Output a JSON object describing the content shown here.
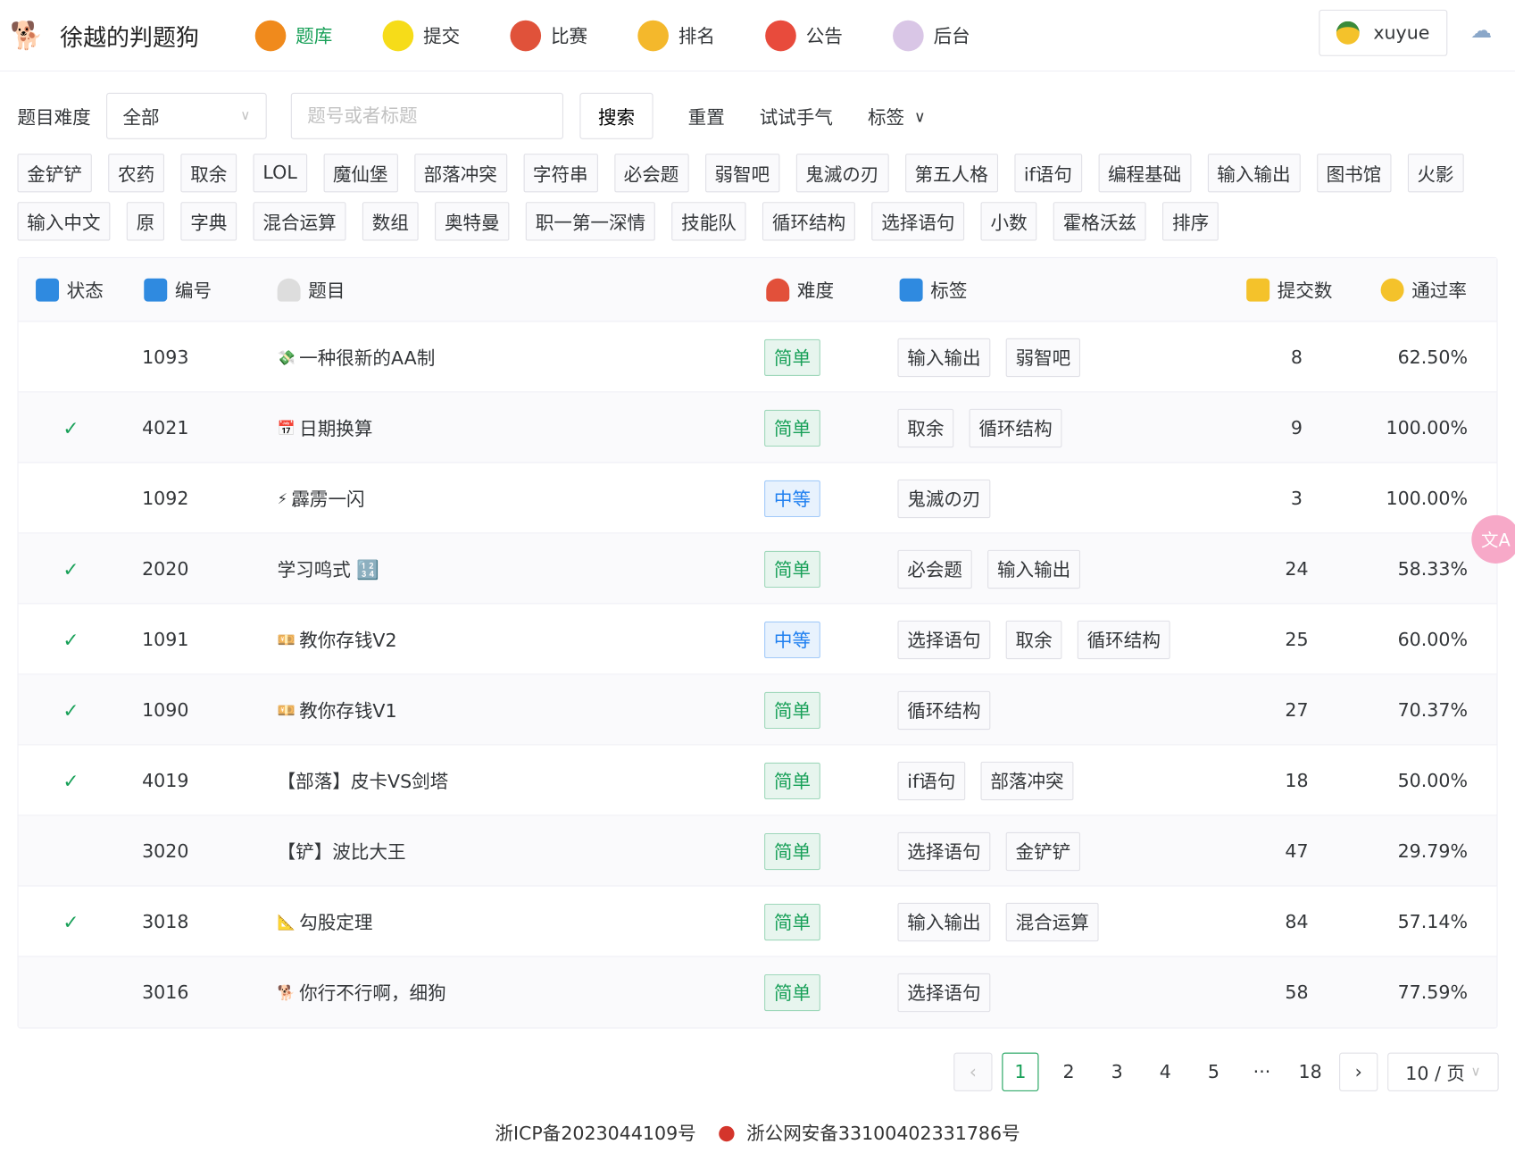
{
  "nav": {
    "site_title": "徐越的判题狗",
    "items": [
      {
        "label": "题库",
        "icon": "pumpkin-icon",
        "color": "#f08a1c",
        "active": true
      },
      {
        "label": "提交",
        "icon": "lemon-icon",
        "color": "#f6dc19"
      },
      {
        "label": "比赛",
        "icon": "target-icon",
        "color": "#e0523a"
      },
      {
        "label": "排名",
        "icon": "crown-icon",
        "color": "#f4b82c"
      },
      {
        "label": "公告",
        "icon": "siren-icon",
        "color": "#e84b3c"
      },
      {
        "label": "后台",
        "icon": "unicorn-icon",
        "color": "#d9c6e6"
      }
    ],
    "user": "xuyue"
  },
  "filter": {
    "difficulty_label": "题目难度",
    "difficulty_value": "全部",
    "search_placeholder": "题号或者标题",
    "search": "搜索",
    "reset": "重置",
    "random": "试试手气",
    "tags": "标签"
  },
  "tags": [
    "金铲铲",
    "农药",
    "取余",
    "LOL",
    "魔仙堡",
    "部落冲突",
    "字符串",
    "必会题",
    "弱智吧",
    "鬼滅の刃",
    "第五人格",
    "if语句",
    "编程基础",
    "输入输出",
    "图书馆",
    "火影",
    "输入中文",
    "原",
    "字典",
    "混合运算",
    "数组",
    "奥特曼",
    "职一第一深情",
    "技能队",
    "循环结构",
    "选择语句",
    "小数",
    "霍格沃兹",
    "排序"
  ],
  "table": {
    "headers": {
      "status": "状态",
      "id": "编号",
      "title": "题目",
      "difficulty": "难度",
      "tags": "标签",
      "submissions": "提交数",
      "rate": "通过率"
    },
    "rows": [
      {
        "solved": false,
        "id": "1093",
        "icon": "💸",
        "title": "一种很新的AA制",
        "difficulty": "简单",
        "tags": [
          "输入输出",
          "弱智吧"
        ],
        "submissions": "8",
        "rate": "62.50%"
      },
      {
        "solved": true,
        "id": "4021",
        "icon": "📅",
        "title": "日期换算",
        "difficulty": "简单",
        "tags": [
          "取余",
          "循环结构"
        ],
        "submissions": "9",
        "rate": "100.00%"
      },
      {
        "solved": false,
        "id": "1092",
        "icon": "⚡",
        "title": "霹雳一闪",
        "difficulty": "中等",
        "tags": [
          "鬼滅の刃"
        ],
        "submissions": "3",
        "rate": "100.00%"
      },
      {
        "solved": true,
        "id": "2020",
        "icon": "",
        "title": "学习鸣式 🔢",
        "difficulty": "简单",
        "tags": [
          "必会题",
          "输入输出"
        ],
        "submissions": "24",
        "rate": "58.33%"
      },
      {
        "solved": true,
        "id": "1091",
        "icon": "💴",
        "title": "教你存钱V2",
        "difficulty": "中等",
        "tags": [
          "选择语句",
          "取余",
          "循环结构"
        ],
        "submissions": "25",
        "rate": "60.00%"
      },
      {
        "solved": true,
        "id": "1090",
        "icon": "💴",
        "title": "教你存钱V1",
        "difficulty": "简单",
        "tags": [
          "循环结构"
        ],
        "submissions": "27",
        "rate": "70.37%"
      },
      {
        "solved": true,
        "id": "4019",
        "icon": "",
        "title": "【部落】皮卡VS剑塔",
        "difficulty": "简单",
        "tags": [
          "if语句",
          "部落冲突"
        ],
        "submissions": "18",
        "rate": "50.00%"
      },
      {
        "solved": false,
        "id": "3020",
        "icon": "",
        "title": "【铲】波比大王",
        "difficulty": "简单",
        "tags": [
          "选择语句",
          "金铲铲"
        ],
        "submissions": "47",
        "rate": "29.79%"
      },
      {
        "solved": true,
        "id": "3018",
        "icon": "📐",
        "title": "勾股定理",
        "difficulty": "简单",
        "tags": [
          "输入输出",
          "混合运算"
        ],
        "submissions": "84",
        "rate": "57.14%"
      },
      {
        "solved": false,
        "id": "3016",
        "icon": "🐕",
        "title": "你行不行啊，细狗",
        "difficulty": "简单",
        "tags": [
          "选择语句"
        ],
        "submissions": "58",
        "rate": "77.59%"
      }
    ]
  },
  "pagination": {
    "pages": [
      "1",
      "2",
      "3",
      "4",
      "5",
      "···",
      "18"
    ],
    "current": "1",
    "page_size": "10 / 页"
  },
  "footer": {
    "icp": "浙ICP备2023044109号",
    "police": "浙公网安备33100402331786号"
  },
  "colors": {
    "accent": "#18a058",
    "medium": "#2080f0"
  }
}
